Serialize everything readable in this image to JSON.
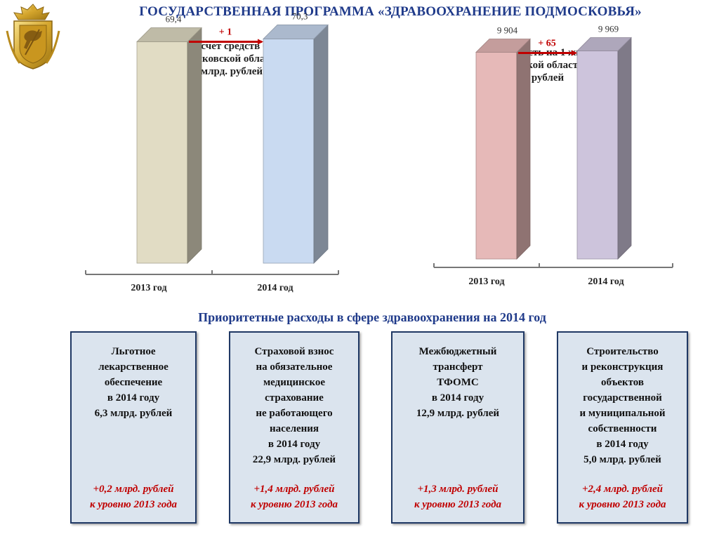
{
  "header": {
    "title": "ГОСУДАРСТВЕННАЯ ПРОГРАММА «ЗДРАВООХРАНЕНИЕ ПОДМОСКОВЬЯ»"
  },
  "colors": {
    "title_blue": "#1f3a8a",
    "arrow_red": "#c00000",
    "card_bg": "#dbe4ee",
    "card_border": "#1f3864"
  },
  "chart_data": [
    {
      "type": "bar",
      "title": "Всего за счет средств бюджета\nМосковской области\nмлрд. рублей",
      "categories": [
        "2013 год",
        "2014 год"
      ],
      "values": [
        69.4,
        70.3
      ],
      "value_labels": [
        "69,4",
        "70,3"
      ],
      "change_label": "+ 1",
      "bar_colors": [
        "#e1dcc4",
        "#c9daf1"
      ],
      "ylim": [
        0,
        77
      ],
      "style": "3d-column"
    },
    {
      "type": "bar",
      "title": "Стоимость на 1 жителя\nМосковской области в год\nрублей",
      "categories": [
        "2013 год",
        "2014 год"
      ],
      "values": [
        9904,
        9969
      ],
      "value_labels": [
        "9 904",
        "9 969"
      ],
      "change_label": "+ 65",
      "bar_colors": [
        "#e6b9b8",
        "#cdc4dc"
      ],
      "ylim": [
        0,
        11500
      ],
      "style": "3d-column"
    }
  ],
  "section_title": "Приоритетные расходы в сфере здравоохранения на 2014 год",
  "cards": [
    {
      "text": "Льготное\nлекарственное\nобеспечение\nв 2014 году\n6,3 млрд. рублей",
      "delta": "+0,2 млрд. рублей\nк уровню 2013 года"
    },
    {
      "text": "Страховой взнос\nна обязательное\nмедицинское\nстрахование\nне работающего\nнаселения\nв 2014 году\n22,9 млрд. рублей",
      "delta": "+1,4 млрд. рублей\nк уровню 2013 года"
    },
    {
      "text": "Межбюджетный\nтрансферт\nТФОМС\nв 2014 году\n12,9 млрд. рублей",
      "delta": "+1,3 млрд. рублей\nк уровню 2013 года"
    },
    {
      "text": "Строительство\nи реконструкция\nобъектов\nгосударственной\nи муниципальной\nсобственности\nв 2014 году\n5,0 млрд. рублей",
      "delta": "+2,4 млрд. рублей\nк уровню 2013 года"
    }
  ]
}
